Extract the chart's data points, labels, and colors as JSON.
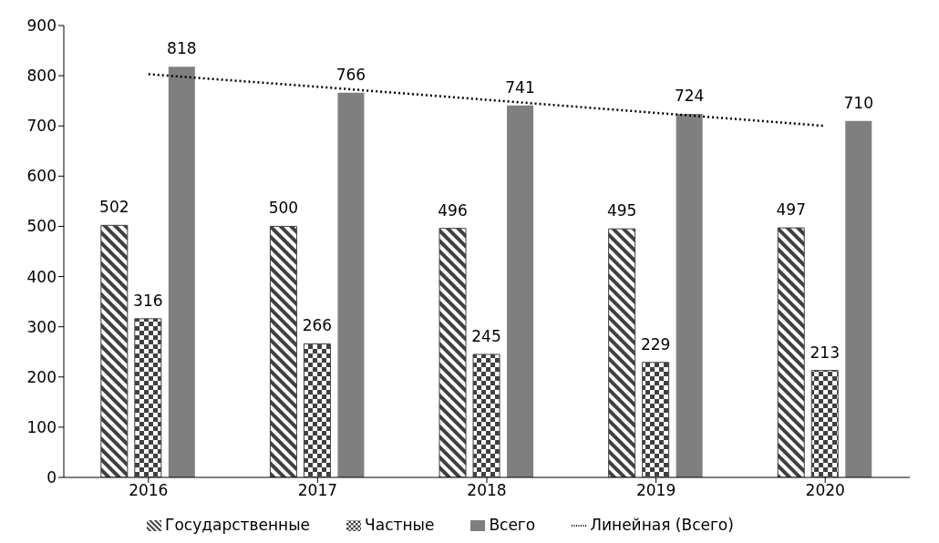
{
  "chart_data": {
    "type": "bar",
    "categories": [
      "2016",
      "2017",
      "2018",
      "2019",
      "2020"
    ],
    "series": [
      {
        "name": "Государственные",
        "color": "#404040",
        "values": [
          502,
          500,
          496,
          495,
          497
        ]
      },
      {
        "name": "Частные",
        "color": "#404040",
        "values": [
          316,
          266,
          245,
          229,
          213
        ]
      },
      {
        "name": "Всего",
        "color": "#7f7f7f",
        "values": [
          818,
          766,
          741,
          724,
          710
        ]
      },
      {
        "name": "Линейная (Всего)",
        "type": "line",
        "color": "#000000",
        "line_style": "dotted",
        "marker": "none",
        "data_labels": false,
        "values": [
          803,
          778,
          752,
          726,
          700
        ]
      }
    ],
    "ylim": [
      0,
      900
    ],
    "yticks": [
      0,
      100,
      200,
      300,
      400,
      500,
      600,
      700,
      800,
      900
    ],
    "grid": false,
    "legend": "bottom",
    "data_labels": true
  }
}
